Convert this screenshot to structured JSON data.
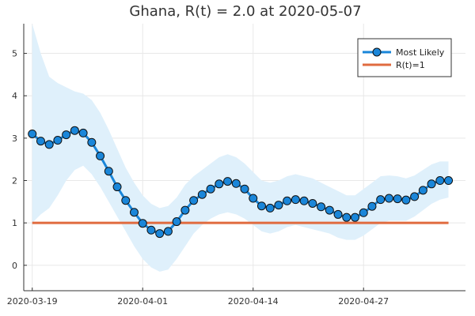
{
  "chart_data": {
    "type": "line",
    "title": "Ghana, R(t) = 2.0 at 2020-05-07",
    "xlabel": "",
    "ylabel": "",
    "x_tick_labels": [
      "2020-03-19",
      "2020-04-01",
      "2020-04-14",
      "2020-04-27"
    ],
    "x_tick_dates": [
      "2020-03-19",
      "2020-04-01",
      "2020-04-14",
      "2020-04-27"
    ],
    "x_range": [
      "2020-03-18",
      "2020-05-09"
    ],
    "y_ticks": [
      0,
      1,
      2,
      3,
      4,
      5
    ],
    "ylim": [
      -0.6,
      5.7
    ],
    "grid": true,
    "legend_position": "top-right",
    "colors": {
      "most_likely": "#1a86d9",
      "marker_fill": "#1a86d9",
      "marker_edge": "#111111",
      "band": "#dff0fb",
      "reference": "#e06b3f",
      "grid": "#e8e8e8",
      "axis": "#333333"
    },
    "series": [
      {
        "name": "Most Likely",
        "x": [
          "2020-03-19",
          "2020-03-20",
          "2020-03-21",
          "2020-03-22",
          "2020-03-23",
          "2020-03-24",
          "2020-03-25",
          "2020-03-26",
          "2020-03-27",
          "2020-03-28",
          "2020-03-29",
          "2020-03-30",
          "2020-03-31",
          "2020-04-01",
          "2020-04-02",
          "2020-04-03",
          "2020-04-04",
          "2020-04-05",
          "2020-04-06",
          "2020-04-07",
          "2020-04-08",
          "2020-04-09",
          "2020-04-10",
          "2020-04-11",
          "2020-04-12",
          "2020-04-13",
          "2020-04-14",
          "2020-04-15",
          "2020-04-16",
          "2020-04-17",
          "2020-04-18",
          "2020-04-19",
          "2020-04-20",
          "2020-04-21",
          "2020-04-22",
          "2020-04-23",
          "2020-04-24",
          "2020-04-25",
          "2020-04-26",
          "2020-04-27",
          "2020-04-28",
          "2020-04-29",
          "2020-04-30",
          "2020-05-01",
          "2020-05-02",
          "2020-05-03",
          "2020-05-04",
          "2020-05-05",
          "2020-05-06",
          "2020-05-07"
        ],
        "values": [
          3.1,
          2.93,
          2.85,
          2.95,
          3.08,
          3.18,
          3.12,
          2.9,
          2.58,
          2.22,
          1.85,
          1.53,
          1.25,
          0.99,
          0.83,
          0.75,
          0.8,
          1.03,
          1.3,
          1.53,
          1.67,
          1.8,
          1.92,
          1.98,
          1.93,
          1.8,
          1.58,
          1.4,
          1.35,
          1.42,
          1.52,
          1.55,
          1.52,
          1.46,
          1.38,
          1.3,
          1.2,
          1.13,
          1.13,
          1.24,
          1.39,
          1.55,
          1.58,
          1.57,
          1.54,
          1.62,
          1.77,
          1.92,
          2.0,
          2.0
        ]
      },
      {
        "name": "R(t)=1",
        "x": [
          "2020-03-19",
          "2020-05-07"
        ],
        "values": [
          1,
          1
        ]
      }
    ],
    "band": {
      "x": [
        "2020-03-19",
        "2020-03-20",
        "2020-03-21",
        "2020-03-22",
        "2020-03-23",
        "2020-03-24",
        "2020-03-25",
        "2020-03-26",
        "2020-03-27",
        "2020-03-28",
        "2020-03-29",
        "2020-03-30",
        "2020-03-31",
        "2020-04-01",
        "2020-04-02",
        "2020-04-03",
        "2020-04-04",
        "2020-04-05",
        "2020-04-06",
        "2020-04-07",
        "2020-04-08",
        "2020-04-09",
        "2020-04-10",
        "2020-04-11",
        "2020-04-12",
        "2020-04-13",
        "2020-04-14",
        "2020-04-15",
        "2020-04-16",
        "2020-04-17",
        "2020-04-18",
        "2020-04-19",
        "2020-04-20",
        "2020-04-21",
        "2020-04-22",
        "2020-04-23",
        "2020-04-24",
        "2020-04-25",
        "2020-04-26",
        "2020-04-27",
        "2020-04-28",
        "2020-04-29",
        "2020-04-30",
        "2020-05-01",
        "2020-05-02",
        "2020-05-03",
        "2020-05-04",
        "2020-05-05",
        "2020-05-06",
        "2020-05-07"
      ],
      "lower": [
        1.0,
        1.2,
        1.35,
        1.65,
        2.0,
        2.25,
        2.35,
        2.15,
        1.85,
        1.5,
        1.15,
        0.8,
        0.45,
        0.15,
        -0.05,
        -0.15,
        -0.1,
        0.15,
        0.45,
        0.75,
        0.95,
        1.1,
        1.2,
        1.25,
        1.2,
        1.1,
        0.95,
        0.8,
        0.75,
        0.8,
        0.9,
        0.95,
        0.9,
        0.85,
        0.8,
        0.75,
        0.65,
        0.6,
        0.6,
        0.7,
        0.85,
        1.0,
        1.05,
        1.05,
        1.05,
        1.15,
        1.3,
        1.45,
        1.55,
        1.6
      ],
      "upper": [
        5.7,
        5.0,
        4.45,
        4.3,
        4.2,
        4.1,
        4.05,
        3.9,
        3.6,
        3.2,
        2.75,
        2.3,
        1.95,
        1.65,
        1.45,
        1.35,
        1.4,
        1.6,
        1.9,
        2.1,
        2.25,
        2.4,
        2.55,
        2.62,
        2.55,
        2.4,
        2.2,
        2.0,
        1.95,
        2.0,
        2.1,
        2.15,
        2.1,
        2.05,
        1.95,
        1.85,
        1.75,
        1.65,
        1.65,
        1.8,
        1.95,
        2.1,
        2.12,
        2.1,
        2.05,
        2.12,
        2.25,
        2.38,
        2.45,
        2.45
      ]
    }
  }
}
